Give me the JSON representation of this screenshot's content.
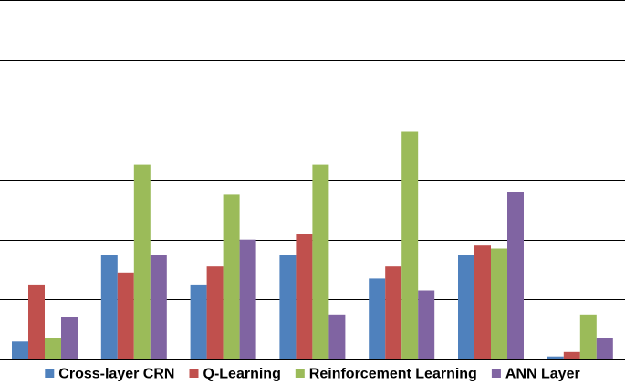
{
  "chart_data": {
    "type": "bar",
    "categories": [
      "",
      "",
      "",
      "",
      "",
      "",
      ""
    ],
    "series": [
      {
        "name": "Cross-layer CRN",
        "color": "#4F81BD",
        "values": [
          6,
          35,
          25,
          35,
          27,
          35,
          1
        ]
      },
      {
        "name": "Q-Learning",
        "color": "#C0504D",
        "values": [
          25,
          29,
          31,
          42,
          31,
          38,
          2.5
        ]
      },
      {
        "name": "Reinforcement Learning",
        "color": "#9BBB59",
        "values": [
          7,
          65,
          55,
          65,
          76,
          37,
          15
        ]
      },
      {
        "name": "ANN Layer",
        "color": "#8064A2",
        "values": [
          14,
          35,
          40,
          15,
          23,
          56,
          7
        ]
      }
    ],
    "ylim": [
      0,
      120
    ],
    "grid": true,
    "legend_position": "bottom"
  }
}
